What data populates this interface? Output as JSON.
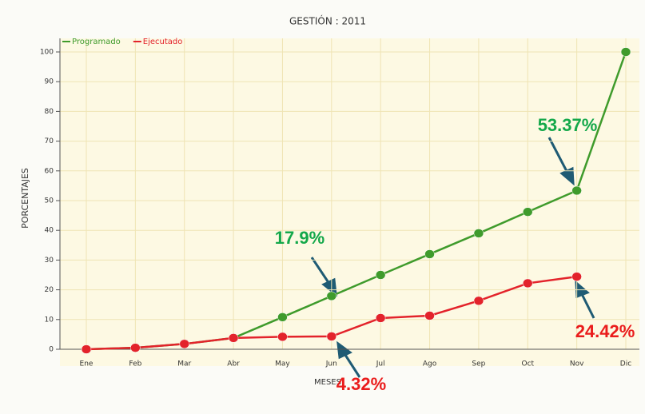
{
  "chart_data": {
    "type": "line",
    "title": "GESTIÓN : 2011",
    "x_label": "MESES",
    "y_label": "PORCENTAJES",
    "categories": [
      "Ene",
      "Feb",
      "Mar",
      "Abr",
      "May",
      "Jun",
      "Jul",
      "Ago",
      "Sep",
      "Oct",
      "Nov",
      "Dic"
    ],
    "series": [
      {
        "name": "Programado",
        "color": "#3f9b2c",
        "values": [
          0,
          0.5,
          1.8,
          3.8,
          10.8,
          17.9,
          25,
          32,
          39,
          46.2,
          53.37,
          100
        ],
        "value_labels": [
          null,
          null,
          null,
          null,
          null,
          "17.9%",
          null,
          null,
          null,
          null,
          "53.37%",
          null
        ],
        "label_color": "#14a84a"
      },
      {
        "name": "Ejecutado",
        "color": "#e3232b",
        "values": [
          0,
          0.5,
          1.8,
          3.8,
          4.2,
          4.32,
          10.5,
          11.3,
          16.3,
          22.2,
          24.42,
          null
        ],
        "value_labels": [
          null,
          null,
          null,
          null,
          null,
          "4.32%",
          null,
          null,
          null,
          null,
          "24.42%",
          null
        ],
        "label_color": "#ea1c1c"
      }
    ],
    "ylim": [
      0,
      100
    ],
    "yticks": [
      0,
      10,
      20,
      30,
      40,
      50,
      60,
      70,
      80,
      90,
      100
    ],
    "grid": true,
    "legend": "top-left"
  }
}
